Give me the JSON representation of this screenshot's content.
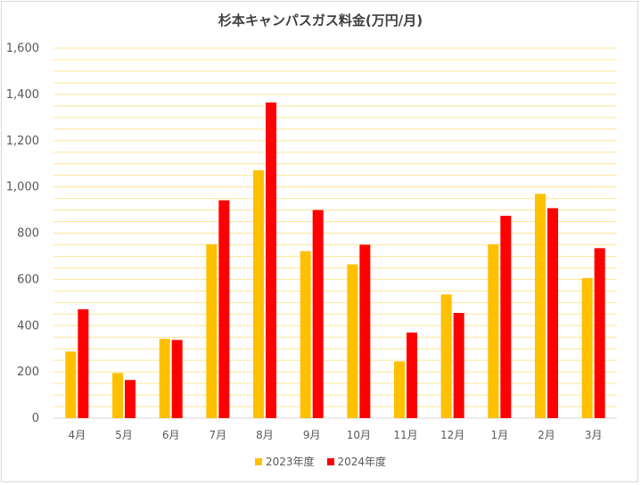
{
  "chart_data": {
    "type": "bar",
    "title": "杉本キャンパスガス料金(万円/月)",
    "categories": [
      "4月",
      "5月",
      "6月",
      "7月",
      "8月",
      "9月",
      "10月",
      "11月",
      "12月",
      "1月",
      "2月",
      "3月"
    ],
    "series": [
      {
        "name": "2023年度",
        "color": "#FFC000",
        "values": [
          288,
          195,
          343,
          752,
          1072,
          722,
          665,
          245,
          535,
          752,
          970,
          606
        ]
      },
      {
        "name": "2024年度",
        "color": "#FF0000",
        "values": [
          471,
          165,
          338,
          942,
          1365,
          900,
          750,
          370,
          455,
          875,
          908,
          735
        ]
      }
    ],
    "ylim": [
      0,
      1600
    ],
    "yticks": [
      "0",
      "200",
      "400",
      "600",
      "800",
      "1,000",
      "1,200",
      "1,400",
      "1,600"
    ],
    "ytick_values": [
      0,
      200,
      400,
      600,
      800,
      1000,
      1200,
      1400,
      1600
    ],
    "grid": true,
    "gridline_color": "#FFE699",
    "legend_position": "bottom"
  }
}
